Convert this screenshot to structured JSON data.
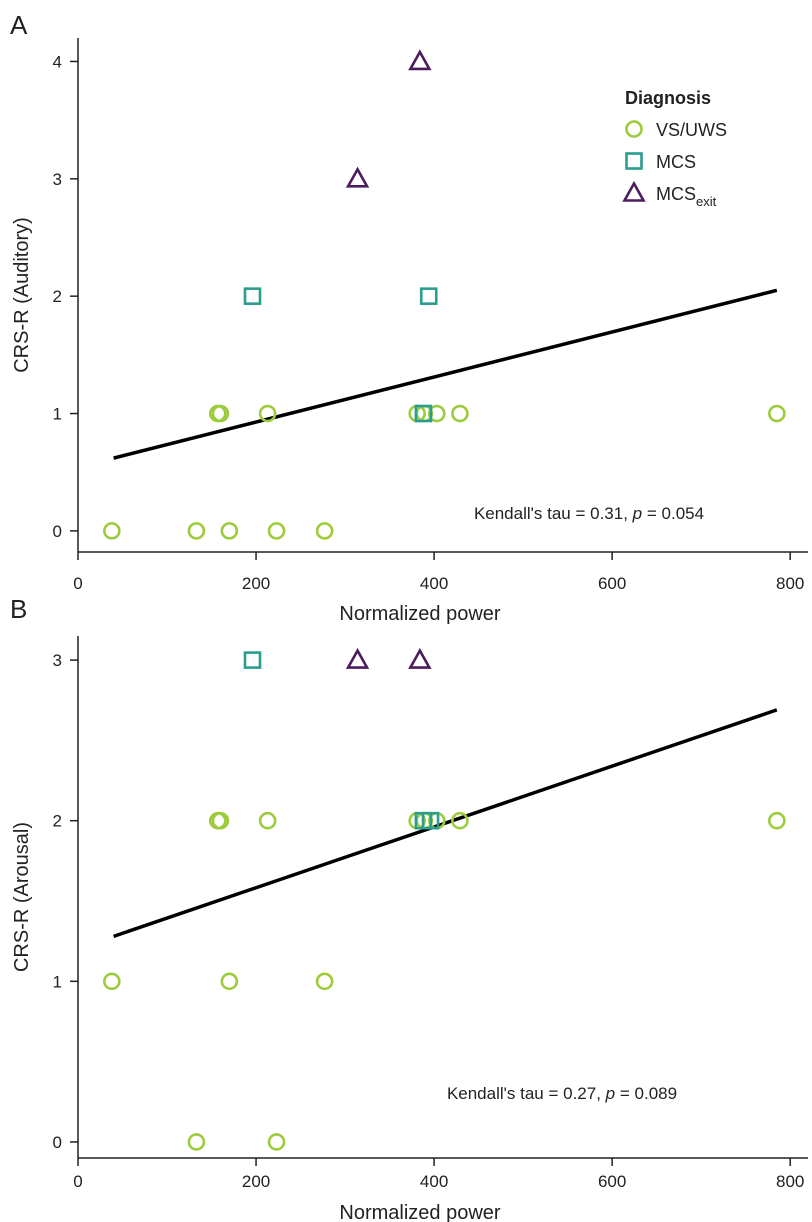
{
  "legend": {
    "title": "Diagnosis",
    "items": [
      {
        "key": "VS/UWS",
        "label": "VS/UWS",
        "sub": "",
        "shape": "circle",
        "color": "#9ccc3c"
      },
      {
        "key": "MCS",
        "label": "MCS",
        "sub": "",
        "shape": "square",
        "color": "#2a9d8f"
      },
      {
        "key": "MCSexit",
        "label": "MCS",
        "sub": "exit",
        "shape": "triangle",
        "color": "#4b1d5c"
      }
    ]
  },
  "chart_data": [
    {
      "panel": "A",
      "type": "scatter",
      "xlabel": "Normalized power",
      "ylabel": "CRS-R (Auditory)",
      "xlim": [
        0,
        820
      ],
      "ylim": [
        -0.18,
        4.2
      ],
      "xticks": [
        0,
        200,
        400,
        600,
        800
      ],
      "yticks": [
        0,
        1,
        2,
        3,
        4
      ],
      "annotation": {
        "prefix": "Kendall's tau = 0.31, ",
        "p": "p",
        "suffix": " = 0.054"
      },
      "fit": {
        "x": [
          40,
          785
        ],
        "y": [
          0.62,
          2.05
        ]
      },
      "series": [
        {
          "name": "VS/UWS",
          "points": [
            [
              38,
              0
            ],
            [
              133,
              0
            ],
            [
              170,
              0
            ],
            [
              223,
              0
            ],
            [
              277,
              0
            ],
            [
              157,
              1
            ],
            [
              160,
              1
            ],
            [
              213,
              1
            ],
            [
              381,
              1
            ],
            [
              389,
              1
            ],
            [
              403,
              1
            ],
            [
              429,
              1
            ],
            [
              785,
              1
            ]
          ]
        },
        {
          "name": "MCS",
          "points": [
            [
              196,
              2
            ],
            [
              394,
              2
            ],
            [
              388,
              1
            ]
          ]
        },
        {
          "name": "MCSexit",
          "points": [
            [
              314,
              3
            ],
            [
              384,
              4
            ]
          ]
        }
      ]
    },
    {
      "panel": "B",
      "type": "scatter",
      "xlabel": "Normalized power",
      "ylabel": "CRS-R (Arousal)",
      "xlim": [
        0,
        820
      ],
      "ylim": [
        -0.1,
        3.15
      ],
      "xticks": [
        0,
        200,
        400,
        600,
        800
      ],
      "yticks": [
        0,
        1,
        2,
        3
      ],
      "annotation": {
        "prefix": "Kendall's tau = 0.27, ",
        "p": "p",
        "suffix": " = 0.089"
      },
      "fit": {
        "x": [
          40,
          785
        ],
        "y": [
          1.28,
          2.69
        ]
      },
      "series": [
        {
          "name": "VS/UWS",
          "points": [
            [
              38,
              1
            ],
            [
              170,
              1
            ],
            [
              277,
              1
            ],
            [
              133,
              0
            ],
            [
              223,
              0
            ],
            [
              157,
              2
            ],
            [
              160,
              2
            ],
            [
              213,
              2
            ],
            [
              381,
              2
            ],
            [
              389,
              2
            ],
            [
              403,
              2
            ],
            [
              429,
              2
            ],
            [
              785,
              2
            ]
          ]
        },
        {
          "name": "MCS",
          "points": [
            [
              196,
              3
            ],
            [
              388,
              2
            ],
            [
              396,
              2
            ]
          ]
        },
        {
          "name": "MCSexit",
          "points": [
            [
              314,
              3
            ],
            [
              384,
              3
            ]
          ]
        }
      ]
    }
  ]
}
